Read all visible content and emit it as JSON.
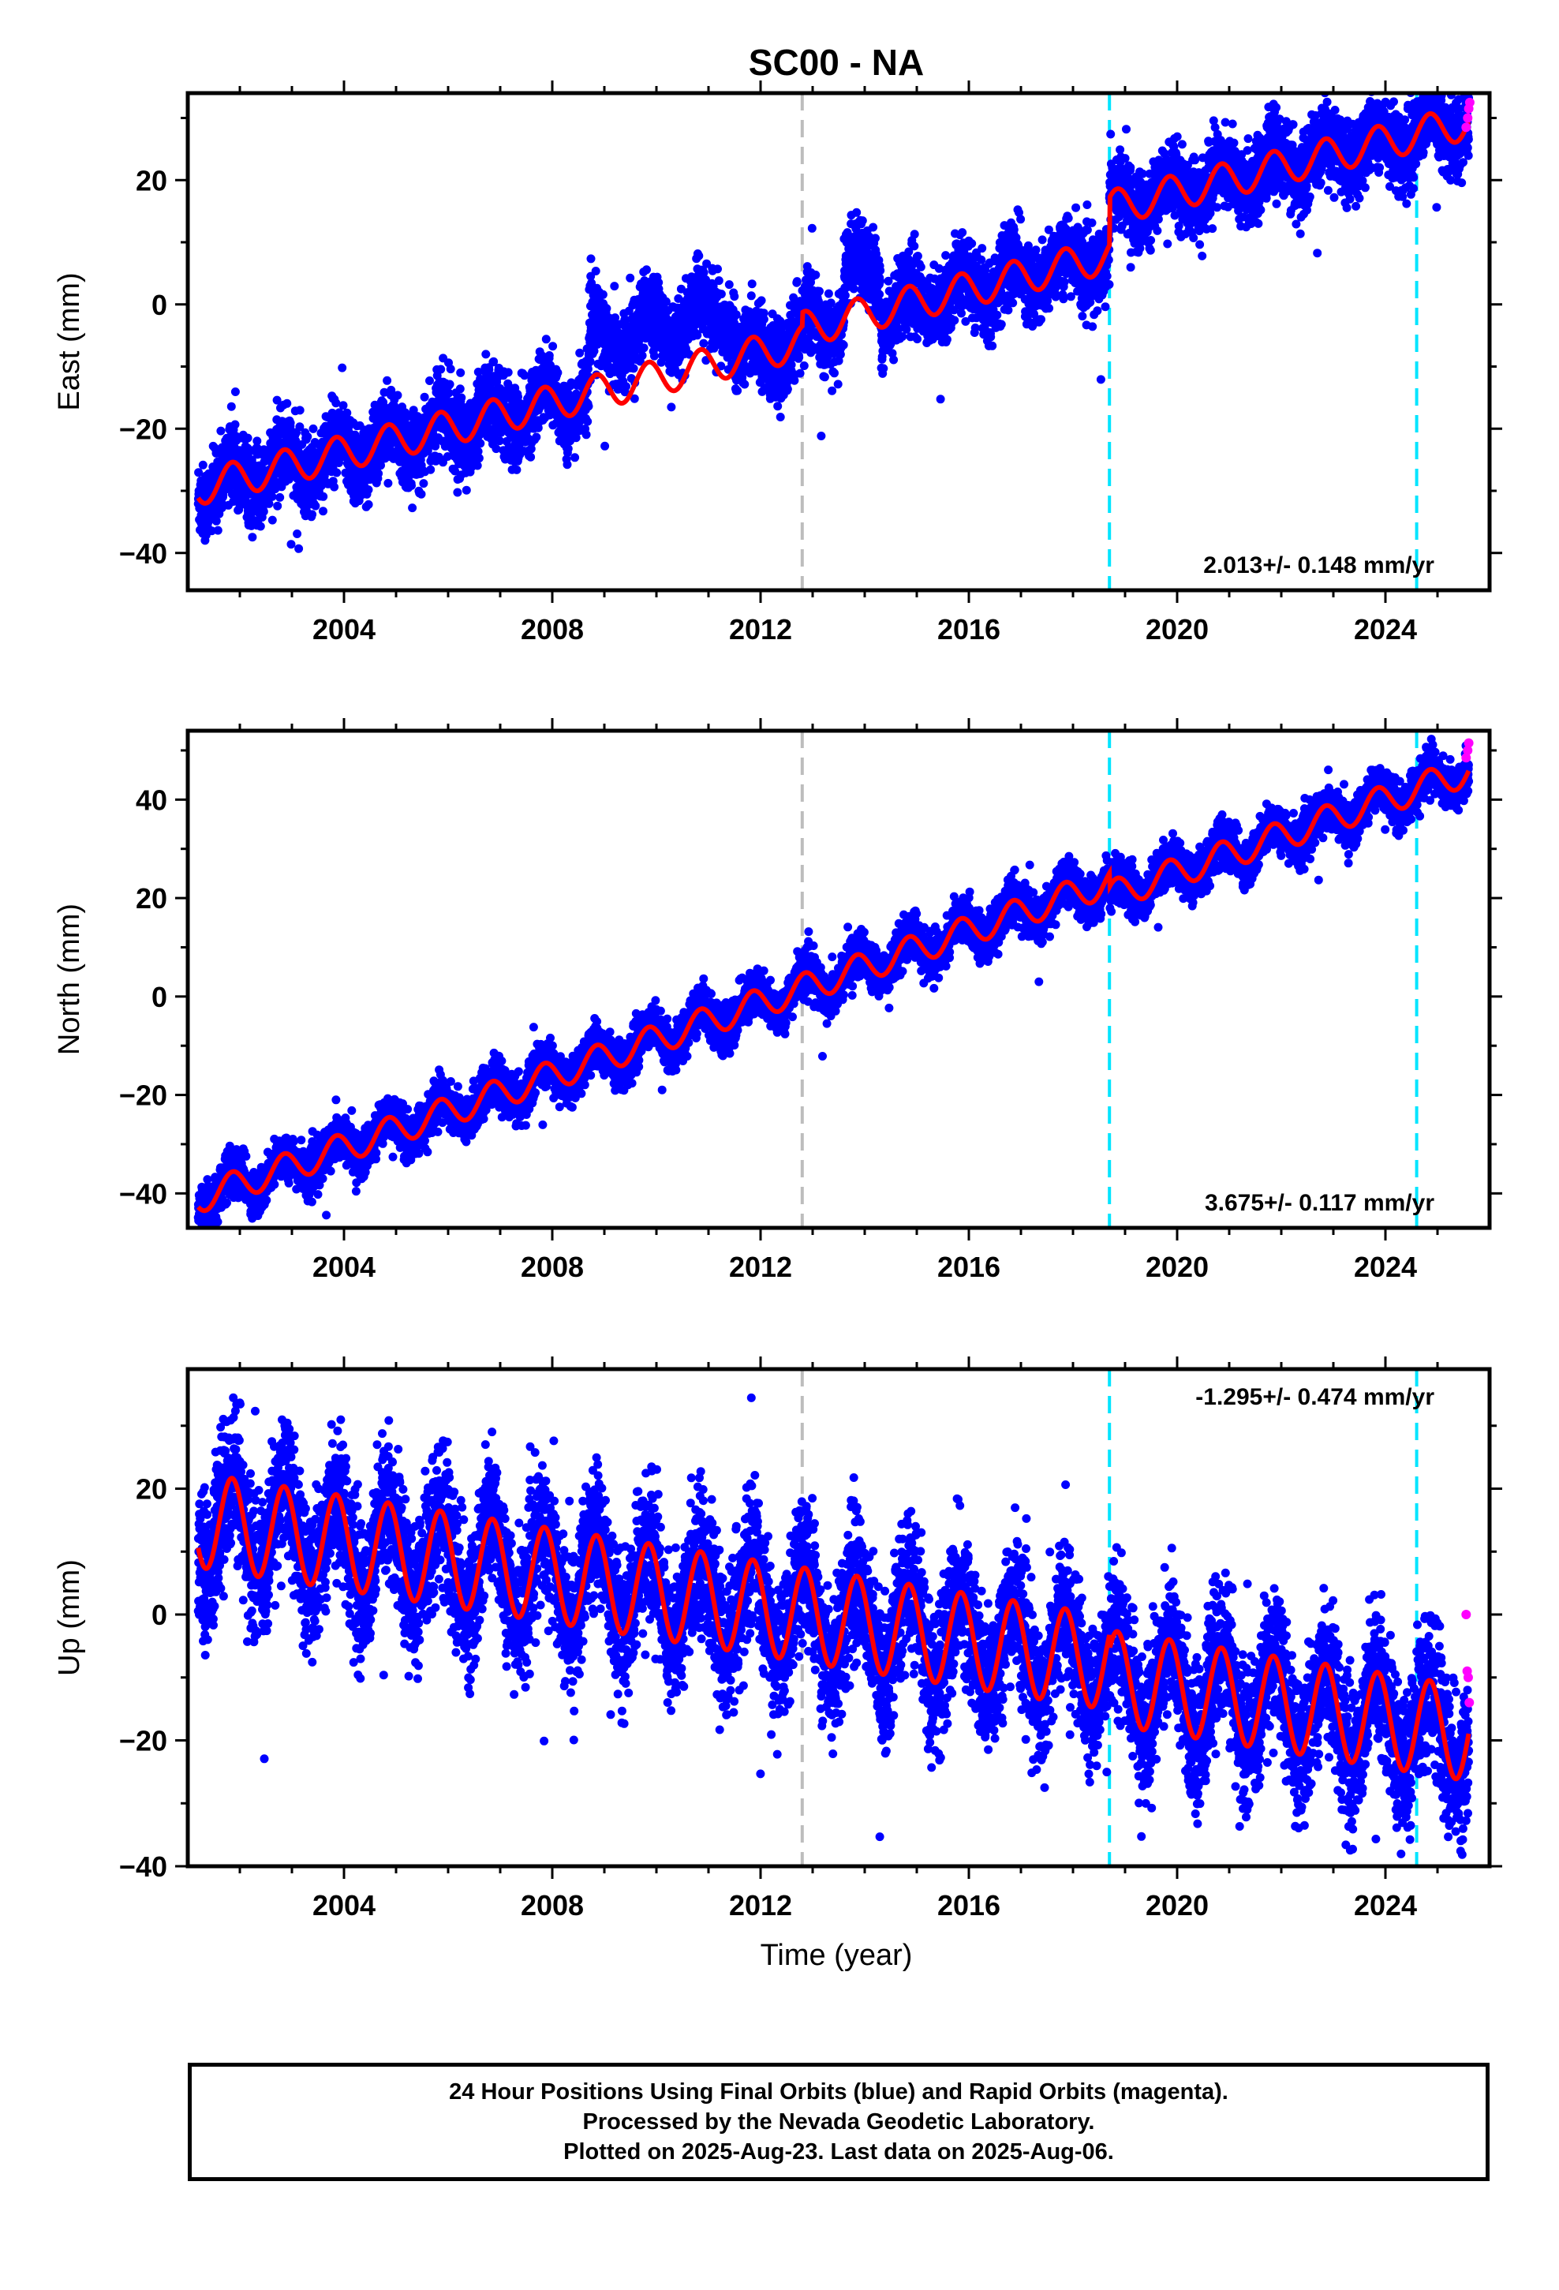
{
  "title": "SC00 - NA",
  "x_axis_label": "Time (year)",
  "caption": [
    "24 Hour Positions Using Final Orbits (blue) and Rapid Orbits (magenta).",
    "Processed by the Nevada Geodetic Laboratory.",
    "Plotted on 2025-Aug-23. Last data on 2025-Aug-06."
  ],
  "colors": {
    "final_orbits": "#0000ff",
    "rapid_orbits": "#ff00ff",
    "model_fit": "#ff0000",
    "event_line_gray": "#bdbdbd",
    "event_line_cyan": "#00e5ff"
  },
  "chart_data": [
    {
      "type": "scatter",
      "component": "East",
      "ylabel": "East (mm)",
      "xlabel": "",
      "xlim": [
        2001.0,
        2026.0
      ],
      "ylim": [
        -46,
        34
      ],
      "xticks": [
        2004,
        2008,
        2012,
        2016,
        2020,
        2024
      ],
      "yticks": [
        -40,
        -20,
        0,
        20
      ],
      "rate_text": "2.013+/- 0.148 mm/yr",
      "rate_position": "bottom-right",
      "gray_event_lines": [
        2012.8
      ],
      "cyan_event_lines": [
        2018.7,
        2024.6
      ],
      "data_start": 2001.2,
      "data_end": 2025.6,
      "annual_amplitude": 2.8,
      "scatter_spread": 3.0,
      "fit_segments": [
        {
          "x0": 2001.2,
          "x1": 2012.8,
          "intercept_at_x0": -29.5,
          "rate": 2.013
        },
        {
          "x0": 2012.8,
          "x1": 2018.7,
          "intercept_at_x0": -4.0,
          "rate": 2.013
        },
        {
          "x0": 2018.7,
          "x1": 2025.6,
          "intercept_at_x0": 15.5,
          "rate": 2.013
        }
      ],
      "observed_offsets": [
        {
          "x0": 2008.7,
          "x1": 2011.5,
          "offset": 8.0
        },
        {
          "x0": 2013.6,
          "x1": 2014.3,
          "offset": 7.0
        }
      ],
      "rapid_orbit_values": [
        {
          "x": 2025.55,
          "y": 28.5
        },
        {
          "x": 2025.58,
          "y": 30.0
        },
        {
          "x": 2025.6,
          "y": 31.5
        },
        {
          "x": 2025.62,
          "y": 32.5
        }
      ]
    },
    {
      "type": "scatter",
      "component": "North",
      "ylabel": "North (mm)",
      "xlabel": "",
      "xlim": [
        2001.0,
        2026.0
      ],
      "ylim": [
        -47,
        54
      ],
      "xticks": [
        2004,
        2008,
        2012,
        2016,
        2020,
        2024
      ],
      "yticks": [
        -40,
        -20,
        0,
        20,
        40
      ],
      "rate_text": "3.675+/- 0.117 mm/yr",
      "rate_position": "bottom-right",
      "gray_event_lines": [
        2012.8
      ],
      "cyan_event_lines": [
        2018.7,
        2024.6
      ],
      "data_start": 2001.2,
      "data_end": 2025.6,
      "annual_amplitude": 3.0,
      "scatter_spread": 2.2,
      "fit_segments": [
        {
          "x0": 2001.2,
          "x1": 2018.7,
          "intercept_at_x0": -41.0,
          "rate": 3.675
        },
        {
          "x0": 2018.7,
          "x1": 2025.6,
          "intercept_at_x0": 20.5,
          "rate": 3.675
        }
      ],
      "observed_offsets": [],
      "rapid_orbit_values": [
        {
          "x": 2025.55,
          "y": 48.5
        },
        {
          "x": 2025.58,
          "y": 50.0
        },
        {
          "x": 2025.6,
          "y": 51.5
        }
      ]
    },
    {
      "type": "scatter",
      "component": "Up",
      "ylabel": "Up (mm)",
      "xlabel": "Time (year)",
      "xlim": [
        2001.0,
        2026.0
      ],
      "ylim": [
        -40,
        39
      ],
      "xticks": [
        2004,
        2008,
        2012,
        2016,
        2020,
        2024
      ],
      "yticks": [
        -40,
        -20,
        0,
        20
      ],
      "rate_text": "-1.295+/- 0.474 mm/yr",
      "rate_position": "top-right",
      "gray_event_lines": [
        2012.8
      ],
      "cyan_event_lines": [
        2018.7,
        2024.6
      ],
      "data_start": 2001.2,
      "data_end": 2025.6,
      "annual_amplitude": 7.5,
      "scatter_spread": 5.5,
      "fit_segments": [
        {
          "x0": 2001.2,
          "x1": 2018.7,
          "intercept_at_x0": 15.0,
          "rate": -1.295
        },
        {
          "x0": 2018.7,
          "x1": 2025.6,
          "intercept_at_x0": -10.0,
          "rate": -1.295
        }
      ],
      "observed_offsets": [],
      "rapid_orbit_values": [
        {
          "x": 2025.55,
          "y": 0.0
        },
        {
          "x": 2025.57,
          "y": -9.0
        },
        {
          "x": 2025.59,
          "y": -10.0
        },
        {
          "x": 2025.61,
          "y": -14.0
        }
      ]
    }
  ]
}
